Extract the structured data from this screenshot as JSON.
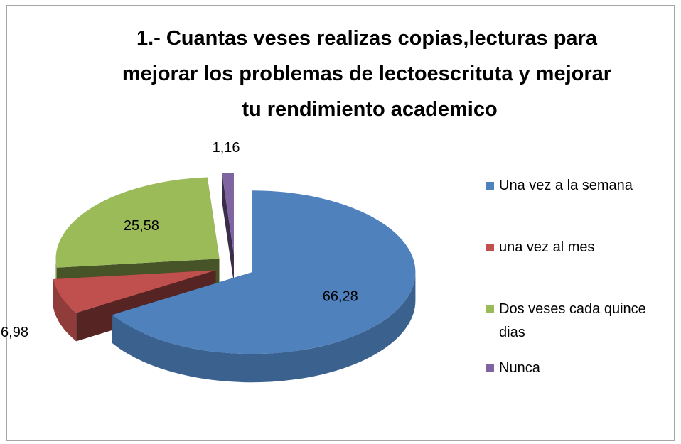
{
  "chart_data": {
    "type": "pie3d",
    "title": "1.- Cuantas veses realizas copias,lecturas para mejorar los problemas de lectoescrituta y mejorar tu rendimiento academico",
    "categories": [
      "Una vez a la semana",
      "una vez al mes",
      "Dos veses cada quince dias",
      "Nunca"
    ],
    "values": [
      66.28,
      6.98,
      25.58,
      1.16
    ],
    "value_labels": [
      "66,28",
      "6,98",
      "25,58",
      "1,16"
    ],
    "colors": [
      "#4f81bd",
      "#c0504d",
      "#9bbb59",
      "#8064a2"
    ],
    "legend": "right"
  }
}
